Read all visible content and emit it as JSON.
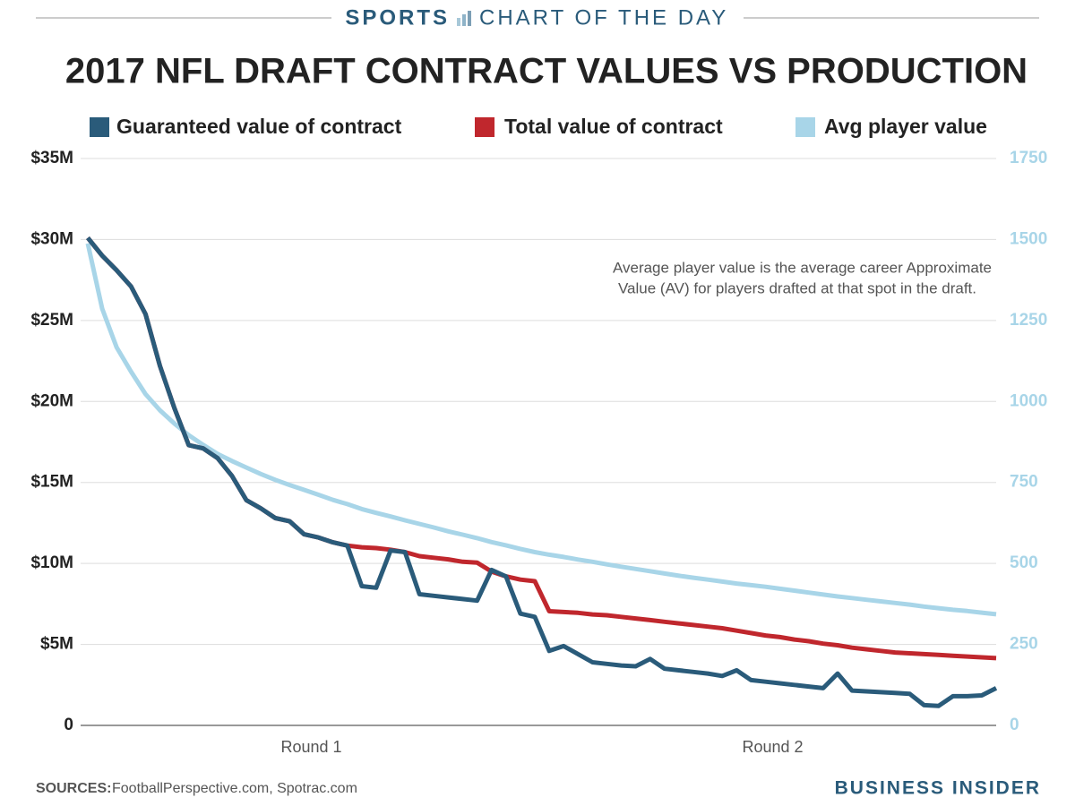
{
  "header": {
    "section": "SPORTS",
    "kicker": "CHART OF THE DAY"
  },
  "chart_data": {
    "type": "line",
    "title": "2017 NFL DRAFT CONTRACT VALUES VS PRODUCTION",
    "annotation": [
      "Average player value is the average career Approximate",
      "Value (AV) for players drafted at that spot in the draft."
    ],
    "x": [
      1,
      2,
      3,
      4,
      5,
      6,
      7,
      8,
      9,
      10,
      11,
      12,
      13,
      14,
      15,
      16,
      17,
      18,
      19,
      20,
      21,
      22,
      23,
      24,
      25,
      26,
      27,
      28,
      29,
      30,
      31,
      32,
      33,
      34,
      35,
      36,
      37,
      38,
      39,
      40,
      41,
      42,
      43,
      44,
      45,
      46,
      47,
      48,
      49,
      50,
      51,
      52,
      53,
      54,
      55,
      56,
      57,
      58,
      59,
      60,
      61,
      62,
      63,
      64
    ],
    "xlim": [
      0.5,
      64
    ],
    "xticks": [
      {
        "value": 16.5,
        "label": "Round 1"
      },
      {
        "value": 48.5,
        "label": "Round 2"
      }
    ],
    "ylim": [
      0,
      35
    ],
    "yticks": [
      {
        "value": 0,
        "label": "0"
      },
      {
        "value": 5,
        "label": "$5M"
      },
      {
        "value": 10,
        "label": "$10M"
      },
      {
        "value": 15,
        "label": "$15M"
      },
      {
        "value": 20,
        "label": "$20M"
      },
      {
        "value": 25,
        "label": "$25M"
      },
      {
        "value": 30,
        "label": "$30M"
      },
      {
        "value": 35,
        "label": "$35M"
      }
    ],
    "y2lim": [
      0,
      1750
    ],
    "y2ticks": [
      0,
      250,
      500,
      750,
      1000,
      1250,
      1500,
      1750
    ],
    "grid": true,
    "series": [
      {
        "name": "Guaranteed value of contract",
        "color": "#2a5b7a",
        "axis": "y",
        "values": [
          30.1,
          29.0,
          28.1,
          27.1,
          25.4,
          22.2,
          19.6,
          17.3,
          17.1,
          16.5,
          15.4,
          13.9,
          13.4,
          12.8,
          12.6,
          11.8,
          11.6,
          11.3,
          11.1,
          8.6,
          8.5,
          10.8,
          10.7,
          8.1,
          8.0,
          7.9,
          7.8,
          7.7,
          9.6,
          9.2,
          6.9,
          6.7,
          4.6,
          4.9,
          4.4,
          3.9,
          3.8,
          3.7,
          3.65,
          4.1,
          3.5,
          3.4,
          3.3,
          3.2,
          3.05,
          3.4,
          2.8,
          2.7,
          2.6,
          2.5,
          2.4,
          2.3,
          3.2,
          2.15,
          2.1,
          2.05,
          2.0,
          1.95,
          1.25,
          1.2,
          1.8,
          1.8,
          1.85,
          2.3
        ]
      },
      {
        "name": "Total value of contract",
        "color": "#c0272d",
        "axis": "y",
        "values": [
          30.1,
          29.0,
          28.1,
          27.1,
          25.4,
          22.2,
          19.6,
          17.3,
          17.1,
          16.5,
          15.4,
          13.9,
          13.4,
          12.8,
          12.6,
          11.8,
          11.6,
          11.3,
          11.1,
          11.0,
          10.95,
          10.85,
          10.7,
          10.45,
          10.35,
          10.25,
          10.1,
          10.05,
          9.5,
          9.2,
          9.0,
          8.9,
          7.05,
          7.0,
          6.95,
          6.85,
          6.8,
          6.7,
          6.6,
          6.5,
          6.4,
          6.3,
          6.2,
          6.1,
          6.0,
          5.85,
          5.7,
          5.55,
          5.45,
          5.3,
          5.2,
          5.05,
          4.95,
          4.8,
          4.7,
          4.6,
          4.5,
          4.45,
          4.4,
          4.35,
          4.3,
          4.25,
          4.2,
          4.15
        ]
      },
      {
        "name": "Avg player value",
        "color": "#a8d5e8",
        "axis": "y2",
        "values": [
          1488,
          1286,
          1167,
          1092,
          1023,
          973,
          932,
          896,
          866,
          838,
          816,
          796,
          776,
          758,
          742,
          727,
          712,
          696,
          683,
          668,
          656,
          645,
          633,
          622,
          611,
          599,
          589,
          578,
          566,
          556,
          545,
          535,
          527,
          520,
          512,
          505,
          497,
          490,
          483,
          476,
          469,
          462,
          456,
          450,
          444,
          438,
          433,
          428,
          422,
          416,
          410,
          404,
          398,
          393,
          388,
          383,
          378,
          373,
          367,
          362,
          357,
          353,
          348,
          343
        ]
      }
    ]
  },
  "footer": {
    "sources_label": "SOURCES:",
    "sources": "FootballPerspective.com, Spotrac.com",
    "brand": "BUSINESS INSIDER"
  }
}
